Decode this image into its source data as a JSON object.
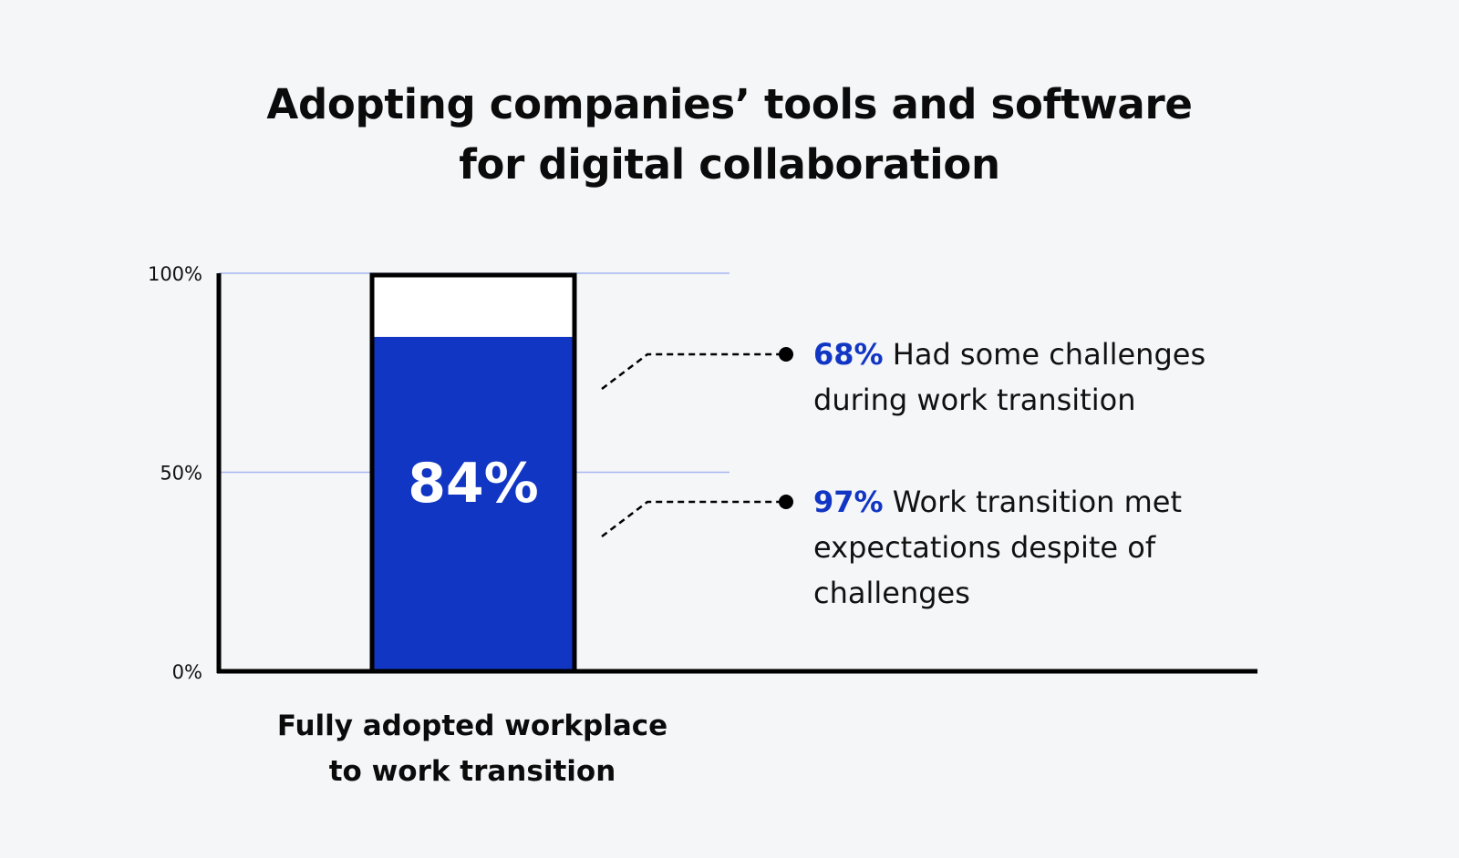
{
  "title": {
    "line1": "Adopting companies’ tools and software",
    "line2": "for digital collaboration"
  },
  "colors": {
    "bar": "#1236c4",
    "highlight": "#1236c4",
    "gridline": "#a7b6f0",
    "background": "#f5f6f8"
  },
  "chart_data": {
    "type": "bar",
    "categories": [
      "Fully adopted workplace to work transition"
    ],
    "values": [
      84
    ],
    "data_labels": [
      "84%"
    ],
    "ylim": [
      0,
      100
    ],
    "yticks": [
      {
        "value": 0,
        "label": "0%"
      },
      {
        "value": 50,
        "label": "50%"
      },
      {
        "value": 100,
        "label": "100%"
      }
    ],
    "xlabel_lines": [
      "Fully adopted workplace",
      "to work transition"
    ],
    "grid": true
  },
  "annotations": [
    {
      "value": "68%",
      "text_line1": " Had some challenges",
      "text_line2": "during work transition",
      "text_line3": ""
    },
    {
      "value": "97%",
      "text_line1": " Work transition met",
      "text_line2": "expectations despite of",
      "text_line3": "challenges"
    }
  ]
}
